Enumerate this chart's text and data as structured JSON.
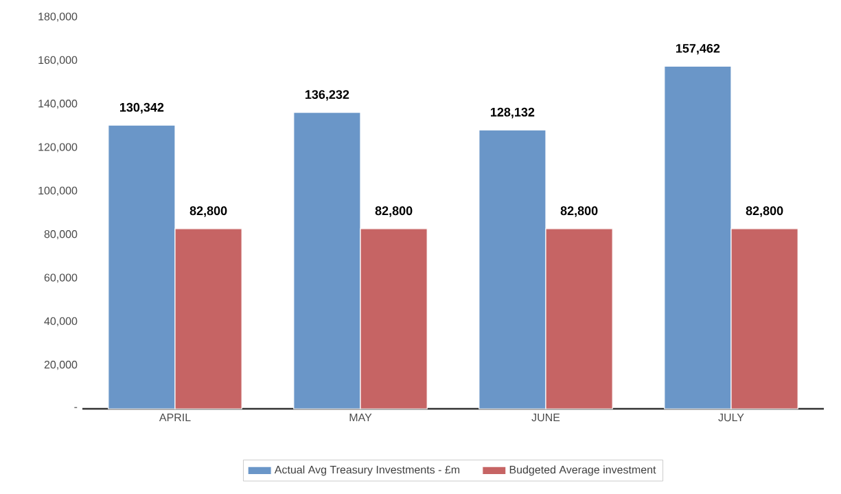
{
  "chart_data": {
    "type": "bar",
    "categories": [
      "APRIL",
      "MAY",
      "JUNE",
      "JULY"
    ],
    "series": [
      {
        "name": "Actual Avg Treasury Investments - £m",
        "color": "#6a96c8",
        "values": [
          130342,
          136232,
          128132,
          157462
        ],
        "value_labels": [
          "130,342",
          "136,232",
          "128,132",
          "157,462"
        ]
      },
      {
        "name": "Budgeted Average investment",
        "color": "#c66464",
        "values": [
          82800,
          82800,
          82800,
          82800
        ],
        "value_labels": [
          "82,800",
          "82,800",
          "82,800",
          "82,800"
        ]
      }
    ],
    "ylim": [
      0,
      180000
    ],
    "yticks": [
      {
        "value": 0,
        "label": "-"
      },
      {
        "value": 20000,
        "label": "20,000"
      },
      {
        "value": 40000,
        "label": "40,000"
      },
      {
        "value": 60000,
        "label": "60,000"
      },
      {
        "value": 80000,
        "label": "80,000"
      },
      {
        "value": 100000,
        "label": "100,000"
      },
      {
        "value": 120000,
        "label": "120,000"
      },
      {
        "value": 140000,
        "label": "140,000"
      },
      {
        "value": 160000,
        "label": "160,000"
      },
      {
        "value": 180000,
        "label": "180,000"
      }
    ],
    "grid": false,
    "legend": "bottom"
  }
}
